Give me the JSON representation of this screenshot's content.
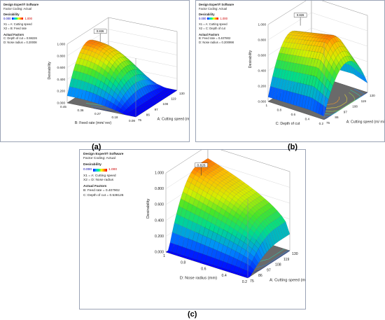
{
  "chart_data": [
    {
      "type": "surface",
      "panel_caption": "(a)",
      "header": {
        "software": "Design Expert® Software",
        "coding": "Factor Coding: Actual",
        "response": "Desirability",
        "legend_min": "0.000",
        "legend_max": "1.000",
        "x1_def": "X1 = A: Cutting speed",
        "x2_def": "X2 = B: Feed rate",
        "actual_factors_title": "Actual Factors",
        "actual_factors": [
          "C: Depth of cut = 0.59226",
          "D: Nose radius = 0.20008"
        ]
      },
      "zlabel": "Desirability",
      "zticks": [
        "0.000",
        "0.200",
        "0.400",
        "0.600",
        "0.800",
        "1.000"
      ],
      "xlabel": "A: Cutting speed (m/ min)",
      "xticks": [
        "75",
        "86",
        "97",
        "108",
        "119",
        "130"
      ],
      "ylabel": "B: Feed rate (mm/ rev)",
      "yticks": [
        "0.09",
        "0.18",
        "0.27",
        "0.36",
        "0.45"
      ],
      "optimum_label": "0.826",
      "optimum_value": 0.826,
      "peak_desirability": 0.83
    },
    {
      "type": "surface",
      "panel_caption": "(b)",
      "header": {
        "software": "Design Expert® Software",
        "coding": "Factor Coding: Actual",
        "response": "Desirability",
        "legend_min": "0.000",
        "legend_max": "1.000",
        "x1_def": "X1 = A: Cutting speed",
        "x2_def": "X2 = C: Depth of cut",
        "actual_factors_title": "Actual Factors",
        "actual_factors": [
          "B: Feed rate = 0.407902",
          "D: Nose radius = 0.200998"
        ]
      },
      "zlabel": "Desirability",
      "zticks": [
        "0.000",
        "0.200",
        "0.400",
        "0.600",
        "0.800",
        "1.000"
      ],
      "xlabel": "A: Cutting speed (m/ min)",
      "xticks": [
        "75",
        "86",
        "97",
        "108",
        "119",
        "130"
      ],
      "ylabel": "C: Depth of cut",
      "yticks": [
        "0.2",
        "0.4",
        "0.6",
        "0.8",
        "1"
      ],
      "optimum_label": "0.826",
      "optimum_value": 0.826,
      "peak_desirability": 0.88
    },
    {
      "type": "surface",
      "panel_caption": "(c)",
      "header": {
        "software": "Design Expert® Software",
        "coding": "Factor Coding: Actual",
        "response": "Desirability",
        "legend_min": "0.000",
        "legend_max": "1.000",
        "x1_def": "X1 = A: Cutting speed",
        "x2_def": "X2 = D: Nose radius",
        "actual_factors_title": "Actual Factors",
        "actual_factors": [
          "B: Feed rate = 0.407902",
          "C: Depth of cut = 0.538126"
        ]
      },
      "zlabel": "Desirability",
      "zticks": [
        "0.000",
        "0.200",
        "0.400",
        "0.600",
        "0.800",
        "1.000"
      ],
      "xlabel": "A: Cutting speed (m/ min)",
      "xticks": [
        "75",
        "86",
        "97",
        "108",
        "119",
        "130"
      ],
      "ylabel": "D: Nose radius (mm)",
      "yticks": [
        "0.2",
        "0.4",
        "0.6",
        "0.8",
        "1"
      ],
      "optimum_label": "0.826",
      "optimum_value": 0.826,
      "peak_desirability": 0.84
    }
  ]
}
